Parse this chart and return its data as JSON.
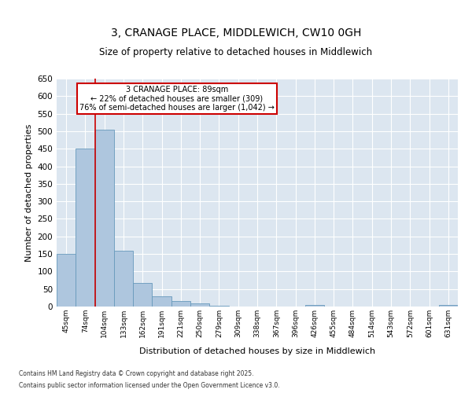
{
  "title": "3, CRANAGE PLACE, MIDDLEWICH, CW10 0GH",
  "subtitle": "Size of property relative to detached houses in Middlewich",
  "xlabel": "Distribution of detached houses by size in Middlewich",
  "ylabel": "Number of detached properties",
  "categories": [
    "45sqm",
    "74sqm",
    "104sqm",
    "133sqm",
    "162sqm",
    "191sqm",
    "221sqm",
    "250sqm",
    "279sqm",
    "309sqm",
    "338sqm",
    "367sqm",
    "396sqm",
    "426sqm",
    "455sqm",
    "484sqm",
    "514sqm",
    "543sqm",
    "572sqm",
    "601sqm",
    "631sqm"
  ],
  "values": [
    150,
    450,
    505,
    160,
    68,
    30,
    15,
    8,
    3,
    0,
    0,
    0,
    0,
    4,
    0,
    0,
    0,
    0,
    0,
    0,
    4
  ],
  "bar_color": "#aec6de",
  "bar_edge_color": "#6699bb",
  "ylim": [
    0,
    650
  ],
  "yticks": [
    0,
    50,
    100,
    150,
    200,
    250,
    300,
    350,
    400,
    450,
    500,
    550,
    600,
    650
  ],
  "red_line_x": 1.5,
  "annotation_title": "3 CRANAGE PLACE: 89sqm",
  "annotation_line1": "← 22% of detached houses are smaller (309)",
  "annotation_line2": "76% of semi-detached houses are larger (1,042) →",
  "annotation_box_color": "#ffffff",
  "annotation_box_edge": "#cc0000",
  "red_line_color": "#cc0000",
  "background_color": "#dce6f0",
  "grid_color": "#ffffff",
  "fig_background": "#ffffff",
  "footer_line1": "Contains HM Land Registry data © Crown copyright and database right 2025.",
  "footer_line2": "Contains public sector information licensed under the Open Government Licence v3.0."
}
